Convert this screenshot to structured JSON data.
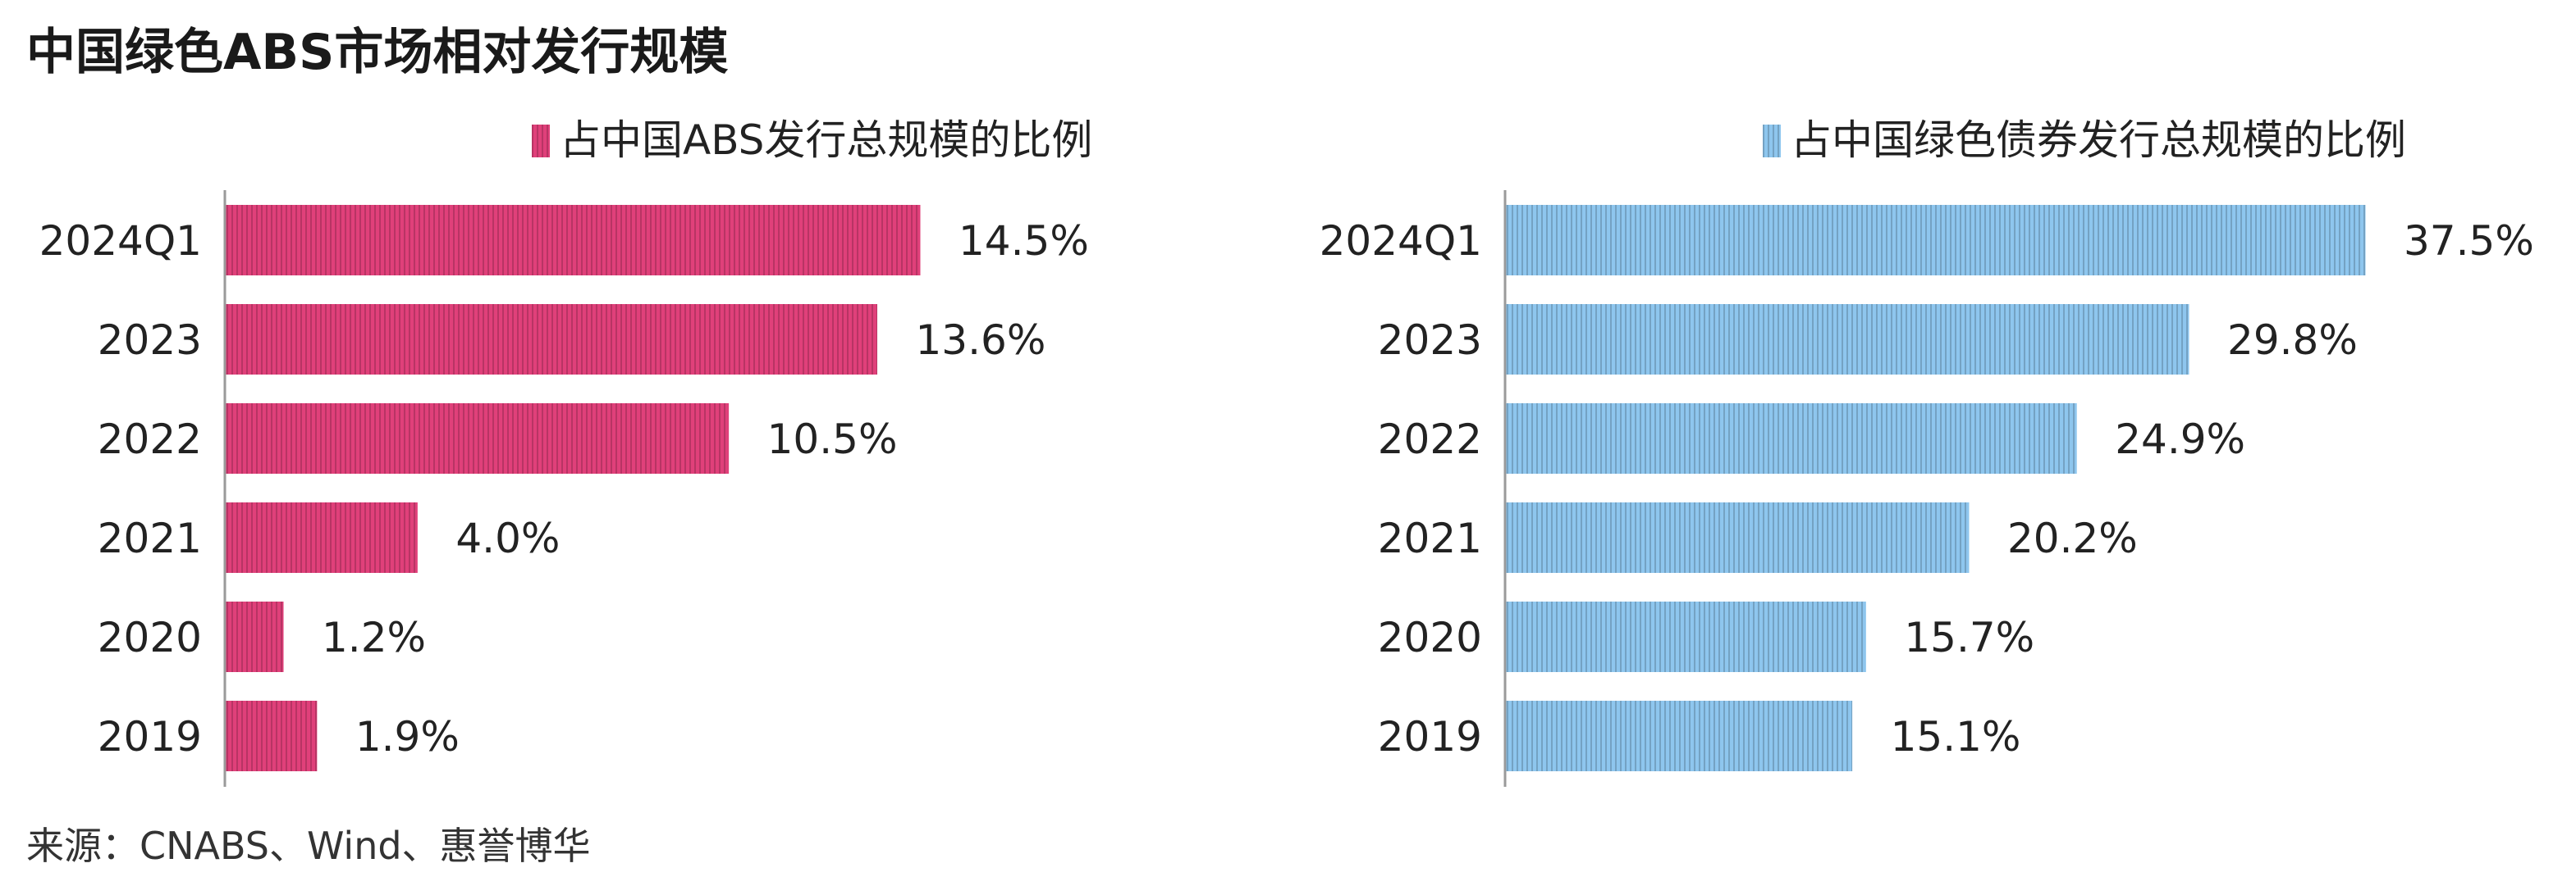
{
  "title": "中国绿色ABS市场相对发行规模",
  "source": "来源：CNABS、Wind、惠誉博华",
  "chart_data": [
    {
      "type": "bar",
      "orientation": "horizontal",
      "categories": [
        "2024Q1",
        "2023",
        "2022",
        "2021",
        "2020",
        "2019"
      ],
      "series": [
        {
          "name": "占中国ABS发行总规模的比例",
          "values": [
            14.5,
            13.6,
            10.5,
            4.0,
            1.2,
            1.9
          ],
          "color": "#e0407a"
        }
      ],
      "data_labels": [
        "14.5%",
        "13.6%",
        "10.5%",
        "4.0%",
        "1.2%",
        "1.9%"
      ],
      "xlim": [
        0,
        14.5
      ],
      "legend_position": "top-right",
      "grid": false
    },
    {
      "type": "bar",
      "orientation": "horizontal",
      "categories": [
        "2024Q1",
        "2023",
        "2022",
        "2021",
        "2020",
        "2019"
      ],
      "series": [
        {
          "name": "占中国绿色债券发行总规模的比例",
          "values": [
            37.5,
            29.8,
            24.9,
            20.2,
            15.7,
            15.1
          ],
          "color": "#8ec6ee"
        }
      ],
      "data_labels": [
        "37.5%",
        "29.8%",
        "24.9%",
        "20.2%",
        "15.7%",
        "15.1%"
      ],
      "xlim": [
        0,
        37.5
      ],
      "legend_position": "top-right",
      "grid": false
    }
  ]
}
